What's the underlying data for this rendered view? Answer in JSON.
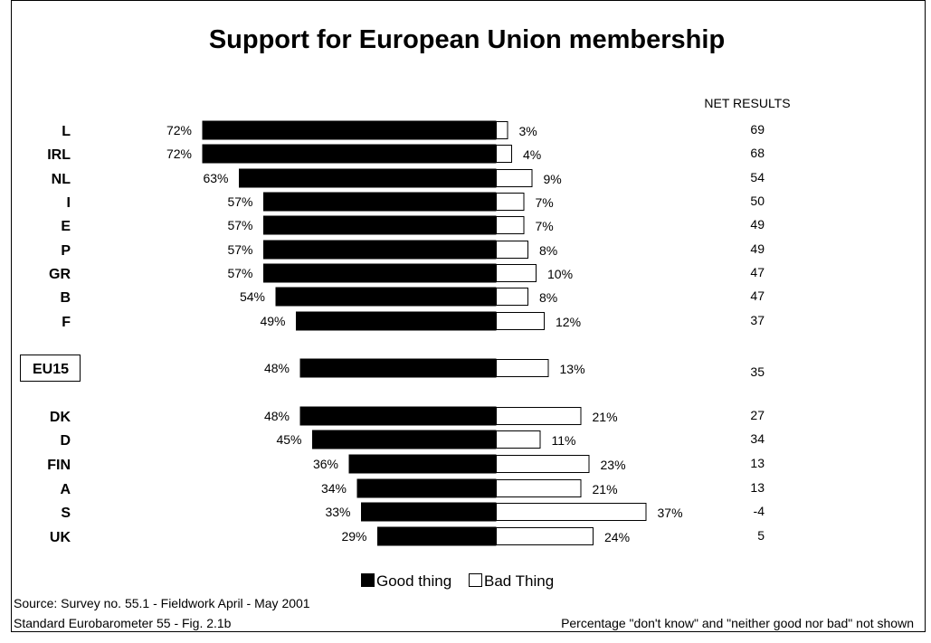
{
  "chart_data": {
    "type": "bar",
    "subtype": "diverging-horizontal",
    "title": "Support for European Union membership",
    "net_header": "NET RESULTS",
    "categories": [
      "L",
      "IRL",
      "NL",
      "I",
      "E",
      "P",
      "GR",
      "B",
      "F",
      "EU15",
      "DK",
      "D",
      "FIN",
      "A",
      "S",
      "UK"
    ],
    "highlighted_category": "EU15",
    "series": [
      {
        "name": "Good thing",
        "color": "#000000",
        "values": [
          72,
          72,
          63,
          57,
          57,
          57,
          57,
          54,
          49,
          48,
          48,
          45,
          36,
          34,
          33,
          29
        ]
      },
      {
        "name": "Bad Thing",
        "color": "#ffffff",
        "values": [
          3,
          4,
          9,
          7,
          7,
          8,
          10,
          8,
          12,
          13,
          21,
          11,
          23,
          21,
          37,
          24
        ]
      }
    ],
    "net_results": [
      69,
      68,
      54,
      50,
      49,
      49,
      47,
      47,
      37,
      35,
      27,
      34,
      13,
      13,
      -4,
      5
    ],
    "value_suffix": "%",
    "legend_placement": "bottom",
    "grid": false,
    "notes": {
      "source": "Source:  Survey no. 55.1 - Fieldwork April - May 2001",
      "reference": "Standard Eurobarometer 55 - Fig. 2.1b",
      "disclaimer": "Percentage \"don't know\" and \"neither good nor bad\" not shown"
    }
  }
}
